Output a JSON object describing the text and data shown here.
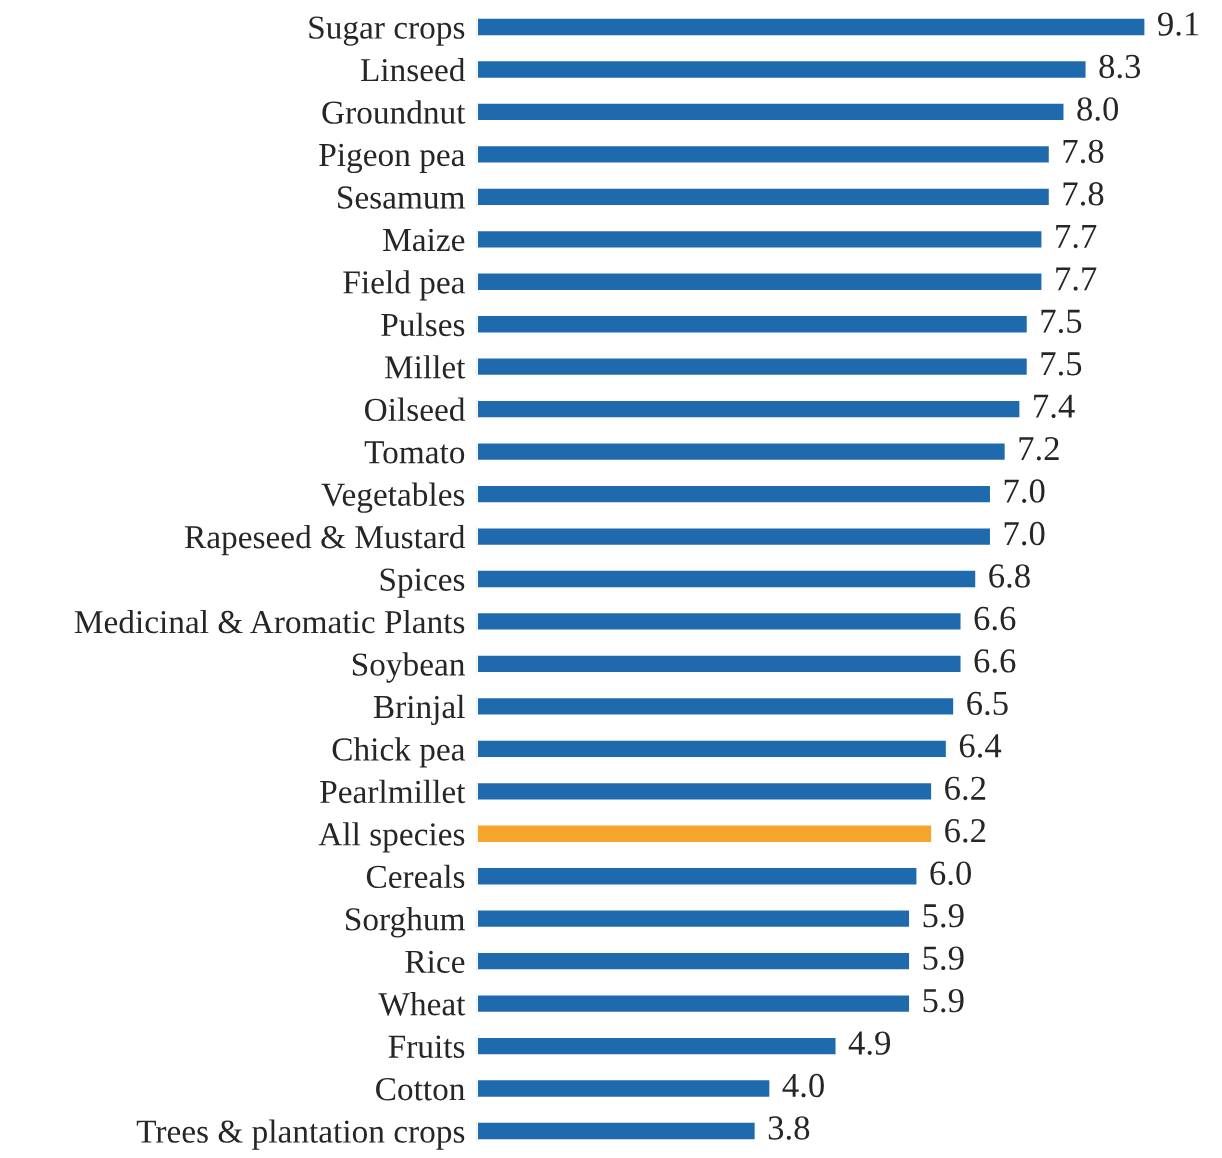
{
  "chart_data": {
    "type": "bar",
    "orientation": "horizontal",
    "value_labels": [
      "9.1",
      "8.3",
      "8.0",
      "7.8",
      "7.8",
      "7.7",
      "7.7",
      "7.5",
      "7.5",
      "7.4",
      "7.2",
      "7.0",
      "7.0",
      "6.8",
      "6.6",
      "6.6",
      "6.5",
      "6.4",
      "6.2",
      "6.2",
      "6.0",
      "5.9",
      "5.9",
      "5.9",
      "4.9",
      "4.0",
      "3.8"
    ],
    "grid": false,
    "legend": false,
    "categories": [
      "Sugar crops",
      "Linseed",
      "Groundnut",
      "Pigeon pea",
      "Sesamum",
      "Maize",
      "Field pea",
      "Pulses",
      "Millet",
      "Oilseed",
      "Tomato",
      "Vegetables",
      "Rapeseed & Mustard",
      "Spices",
      "Medicinal & Aromatic Plants",
      "Soybean",
      "Brinjal",
      "Chick pea",
      "Pearlmillet",
      "All species",
      "Cereals",
      "Sorghum",
      "Rice",
      "Wheat",
      "Fruits",
      "Cotton",
      "Trees & plantation crops"
    ],
    "values": [
      9.1,
      8.3,
      8.0,
      7.8,
      7.8,
      7.7,
      7.7,
      7.5,
      7.5,
      7.4,
      7.2,
      7.0,
      7.0,
      6.8,
      6.6,
      6.6,
      6.5,
      6.4,
      6.2,
      6.2,
      6.0,
      5.9,
      5.9,
      5.9,
      4.9,
      4.0,
      3.8
    ],
    "colors": [
      "#1f6aad",
      "#1f6aad",
      "#1f6aad",
      "#1f6aad",
      "#1f6aad",
      "#1f6aad",
      "#1f6aad",
      "#1f6aad",
      "#1f6aad",
      "#1f6aad",
      "#1f6aad",
      "#1f6aad",
      "#1f6aad",
      "#1f6aad",
      "#1f6aad",
      "#1f6aad",
      "#1f6aad",
      "#1f6aad",
      "#1f6aad",
      "#f5a52b",
      "#1f6aad",
      "#1f6aad",
      "#1f6aad",
      "#1f6aad",
      "#1f6aad",
      "#1f6aad",
      "#1f6aad"
    ]
  }
}
